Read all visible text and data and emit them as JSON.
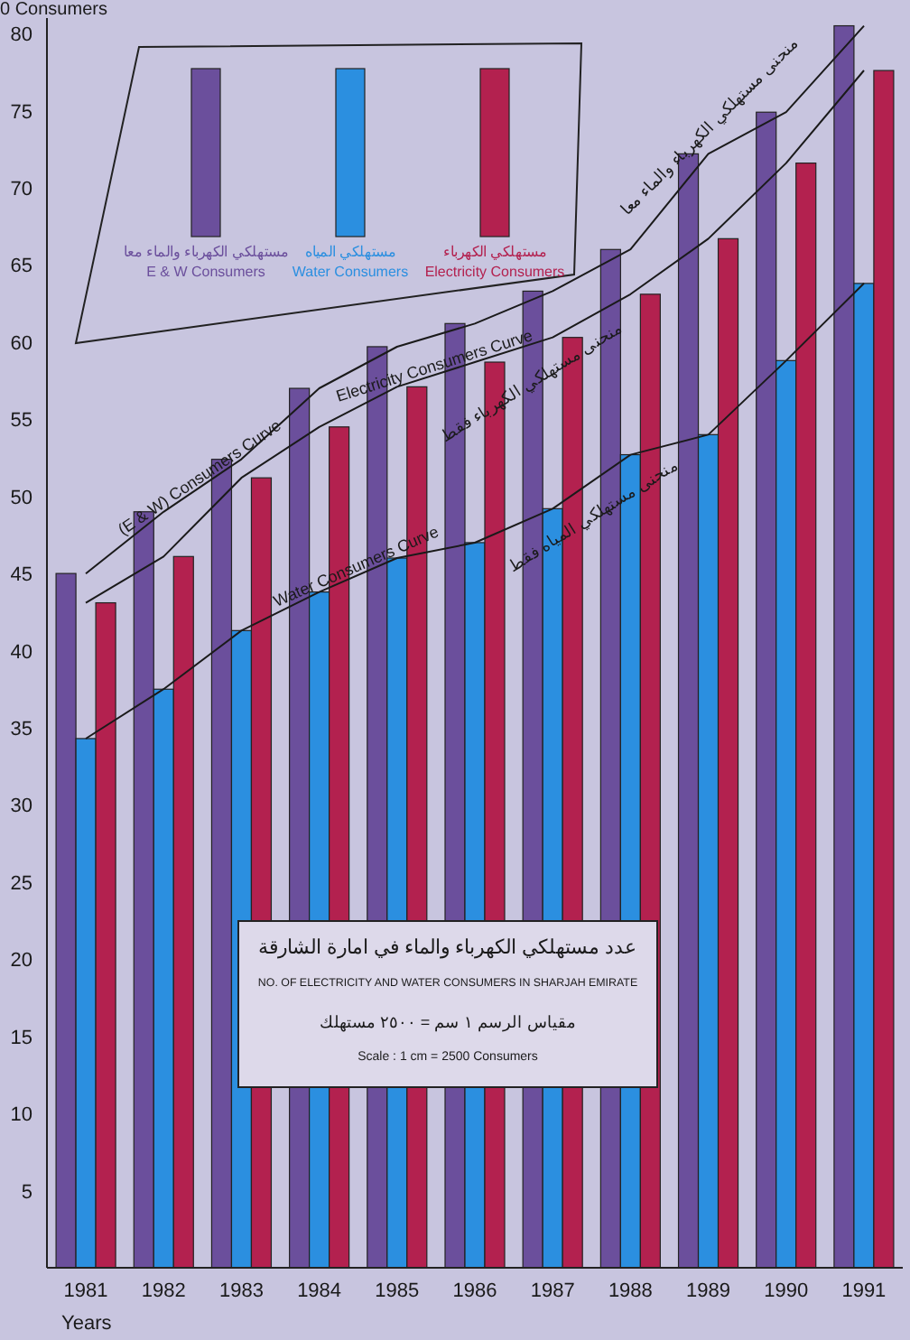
{
  "chart_data": {
    "type": "bar",
    "title": "عدد مستهلكي الكهرباء والماء في امارة الشارقة",
    "subtitle": "NO. OF ELECTRICITY  AND WATER CONSUMERS IN SHARJAH EMIRATE",
    "xlabel": "Years",
    "ylabel": "0 Consumers",
    "categories": [
      "1981",
      "1982",
      "1983",
      "1984",
      "1985",
      "1986",
      "1987",
      "1988",
      "1989",
      "1990",
      "1991"
    ],
    "series": [
      {
        "name": "مستهلكي الكهرباء والماء معا\nE & W  Consumers",
        "color": "#6b4f9c",
        "values": [
          45.0,
          49.0,
          52.4,
          57.0,
          59.7,
          61.2,
          63.3,
          66.0,
          72.2,
          74.9,
          80.5
        ]
      },
      {
        "name": "مستهلكي المياه\nWater Consumers",
        "color": "#2b8fe0",
        "values": [
          34.3,
          37.5,
          41.3,
          43.8,
          46.0,
          47.0,
          49.2,
          52.7,
          54.0,
          58.8,
          63.8
        ]
      },
      {
        "name": "مستهلكي الكهرباء\nElectricity  Consumers",
        "color": "#b3214f",
        "values": [
          43.1,
          46.1,
          51.2,
          54.5,
          57.1,
          58.7,
          60.3,
          63.1,
          66.7,
          71.6,
          77.6
        ]
      },
      {
        "name": "(E & W) Consumers Curve",
        "type": "line",
        "color": "#1a1a1a",
        "values": [
          45.0,
          49.0,
          52.4,
          57.0,
          59.7,
          61.2,
          63.3,
          66.0,
          72.2,
          74.9,
          80.5
        ]
      },
      {
        "name": "Water Consumers Curve",
        "type": "line",
        "color": "#1a1a1a",
        "values": [
          34.3,
          37.5,
          41.3,
          43.8,
          46.0,
          47.0,
          49.2,
          52.7,
          54.0,
          58.8,
          63.8
        ]
      },
      {
        "name": "Electricity  Consumers Curve",
        "type": "line",
        "color": "#1a1a1a",
        "values": [
          43.1,
          46.1,
          51.2,
          54.5,
          57.1,
          58.7,
          60.3,
          63.1,
          66.7,
          71.6,
          77.6
        ]
      }
    ],
    "ylim": [
      0,
      81
    ],
    "yticks": [
      5,
      10,
      15,
      20,
      25,
      30,
      35,
      40,
      45,
      50,
      55,
      60,
      65,
      70,
      75,
      80
    ],
    "grid": false,
    "legend": "top left",
    "annotations": [
      "مقياس الرسم ١ سم = ٢٥٠٠ مستهلك",
      "Scale : 1 cm =  2500 Consumers",
      "منحنى مستهلكي الكهرباء والماء معا",
      "منحنى مستهلكي الكهرباء فقط",
      "منحنى مستهلكي المياه فقط"
    ]
  }
}
